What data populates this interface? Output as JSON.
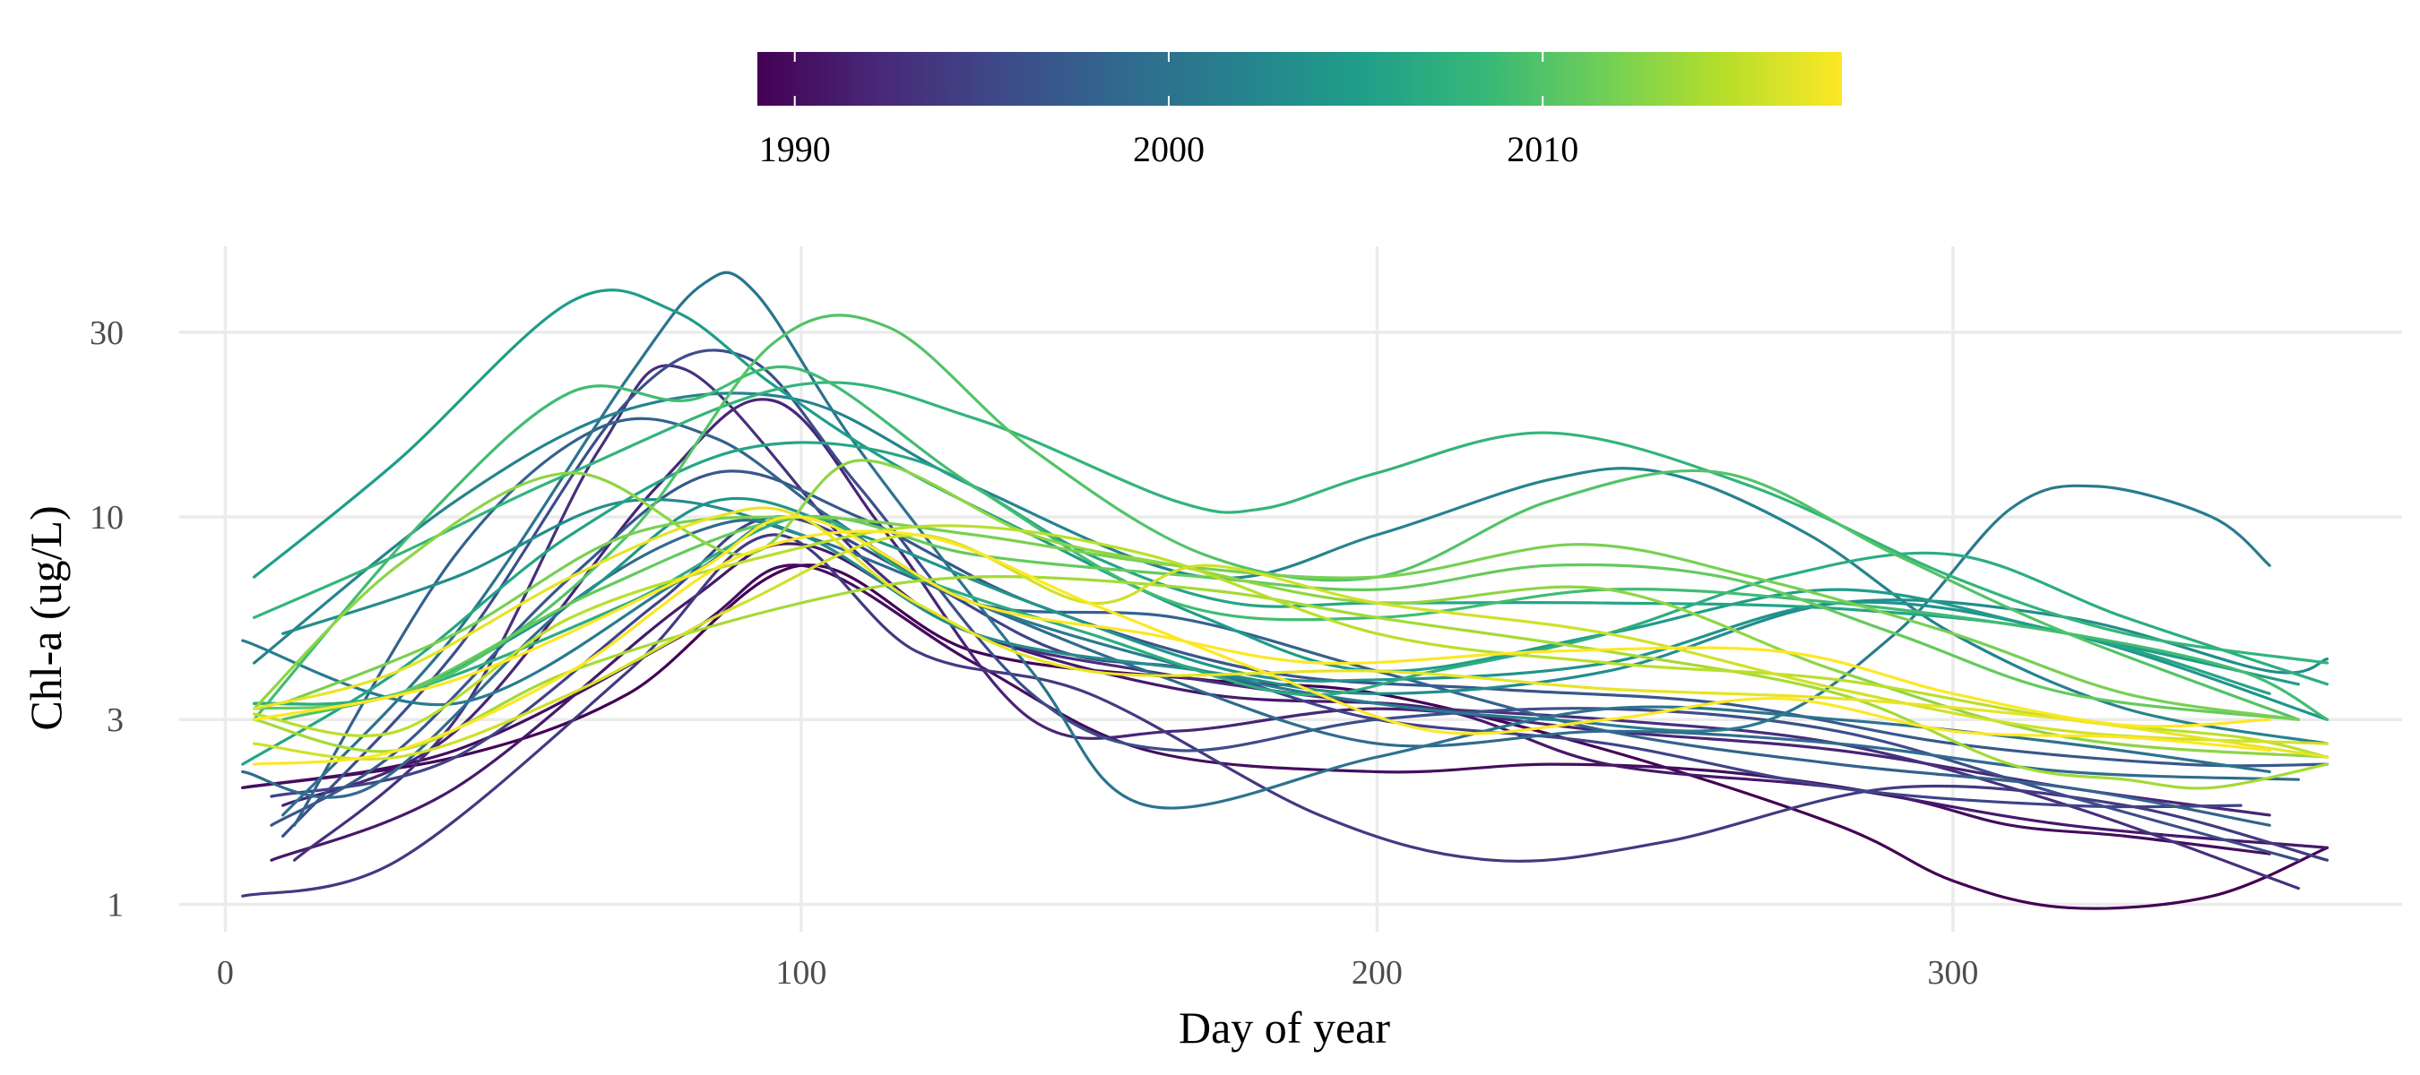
{
  "chart_data": {
    "type": "line",
    "xlabel": "Day of year",
    "ylabel": "Chl-a (ug/L)",
    "y_scale": "log",
    "xlim": [
      -8,
      378
    ],
    "ylim": [
      0.85,
      50
    ],
    "x_ticks": [
      0,
      100,
      200,
      300
    ],
    "x_tick_labels": [
      "0",
      "100",
      "200",
      "300"
    ],
    "y_ticks": [
      1,
      3,
      10,
      30
    ],
    "y_tick_labels": [
      "1",
      "3",
      "10",
      "30"
    ],
    "grid": true,
    "legend": {
      "type": "colorbar",
      "placement": "top",
      "range": [
        1989,
        2018
      ],
      "breaks": [
        1990,
        2000,
        2010
      ],
      "break_labels": [
        "1990",
        "2000",
        "2010"
      ],
      "colors": [
        "#440154",
        "#482878",
        "#3e4989",
        "#31688e",
        "#26828e",
        "#1f9e89",
        "#35b779",
        "#6ece58",
        "#b5de2b",
        "#fde725"
      ]
    },
    "series": [
      {
        "year": 1989,
        "x": [
          3,
          40,
          70,
          100,
          130,
          170,
          200,
          240,
          280,
          300,
          320,
          345,
          365
        ],
        "y": [
          2.0,
          2.4,
          3.5,
          7.5,
          4.5,
          3.8,
          3.5,
          2.5,
          1.6,
          1.15,
          0.98,
          1.05,
          1.4
        ]
      },
      {
        "year": 1990,
        "x": [
          3,
          40,
          80,
          100,
          130,
          160,
          200,
          230,
          260,
          290,
          310,
          330,
          355
        ],
        "y": [
          2.0,
          2.5,
          5.0,
          7.5,
          4.2,
          2.5,
          2.2,
          2.3,
          2.2,
          1.9,
          1.6,
          1.5,
          1.35
        ]
      },
      {
        "year": 1991,
        "x": [
          8,
          40,
          80,
          100,
          130,
          170,
          210,
          240,
          280,
          320,
          365
        ],
        "y": [
          1.3,
          2.0,
          6.0,
          8.5,
          5.0,
          3.5,
          3.2,
          2.3,
          2.0,
          1.6,
          1.4
        ]
      },
      {
        "year": 1992,
        "x": [
          10,
          40,
          75,
          95,
          115,
          140,
          165,
          200,
          240,
          280,
          320,
          355
        ],
        "y": [
          1.8,
          2.8,
          12.0,
          20.0,
          9.0,
          3.0,
          2.8,
          3.2,
          2.8,
          2.5,
          2.0,
          1.7
        ]
      },
      {
        "year": 1993,
        "x": [
          12,
          40,
          65,
          80,
          110,
          130,
          160,
          200,
          240,
          280,
          320,
          360
        ],
        "y": [
          1.3,
          3.0,
          15.0,
          24.0,
          8.0,
          5.0,
          4.0,
          3.3,
          3.0,
          2.6,
          1.8,
          1.1
        ]
      },
      {
        "year": 1994,
        "x": [
          3,
          30,
          70,
          95,
          120,
          150,
          190,
          220,
          250,
          290,
          330,
          365
        ],
        "y": [
          1.05,
          1.3,
          4.0,
          9.0,
          4.5,
          3.5,
          1.7,
          1.3,
          1.45,
          2.0,
          1.8,
          1.3
        ]
      },
      {
        "year": 1995,
        "x": [
          8,
          40,
          75,
          95,
          120,
          145,
          170,
          200,
          240,
          280,
          320,
          350
        ],
        "y": [
          1.9,
          2.4,
          6.0,
          10.0,
          7.0,
          4.5,
          4.0,
          3.0,
          2.6,
          2.0,
          1.8,
          1.8
        ]
      },
      {
        "year": 1996,
        "x": [
          10,
          40,
          70,
          90,
          110,
          140,
          165,
          200,
          240,
          280,
          320,
          360
        ],
        "y": [
          1.5,
          4.5,
          20.0,
          26.0,
          12.0,
          3.5,
          2.5,
          3.0,
          3.2,
          2.8,
          1.9,
          1.3
        ]
      },
      {
        "year": 1997,
        "x": [
          8,
          30,
          60,
          85,
          110,
          140,
          180,
          220,
          260,
          300,
          340,
          365
        ],
        "y": [
          1.6,
          2.5,
          7.0,
          13.0,
          10.0,
          6.0,
          4.0,
          3.6,
          3.3,
          2.6,
          2.3,
          2.3
        ]
      },
      {
        "year": 1998,
        "x": [
          12,
          40,
          65,
          85,
          105,
          130,
          165,
          200,
          240,
          280,
          320,
          355
        ],
        "y": [
          1.6,
          8.0,
          17.0,
          16.0,
          10.0,
          6.0,
          5.5,
          4.0,
          2.8,
          2.3,
          2.0,
          1.6
        ]
      },
      {
        "year": 1999,
        "x": [
          3,
          25,
          60,
          85,
          100,
          130,
          160,
          200,
          240,
          280,
          320,
          360
        ],
        "y": [
          2.2,
          2.0,
          6.0,
          9.5,
          9.0,
          6.0,
          4.0,
          2.6,
          2.8,
          2.6,
          2.2,
          2.1
        ]
      },
      {
        "year": 2000,
        "x": [
          10,
          40,
          70,
          83,
          92,
          110,
          140,
          160,
          200,
          240,
          280,
          320,
          355
        ],
        "y": [
          1.7,
          5.0,
          23.0,
          40.0,
          38.0,
          15.0,
          4.0,
          1.8,
          2.4,
          3.2,
          3.0,
          2.6,
          2.2
        ]
      },
      {
        "year": 2001,
        "x": [
          3,
          40,
          80,
          100,
          130,
          170,
          200,
          230,
          265,
          290,
          310,
          325,
          345,
          355
        ],
        "y": [
          4.8,
          3.3,
          7.0,
          10.0,
          6.0,
          4.0,
          3.3,
          3.0,
          2.9,
          5.0,
          10.5,
          12.0,
          10.0,
          7.5
        ]
      },
      {
        "year": 2002,
        "x": [
          5,
          40,
          70,
          100,
          130,
          170,
          200,
          230,
          250,
          275,
          300,
          330,
          365
        ],
        "y": [
          4.2,
          11.0,
          19.0,
          20.0,
          12.0,
          7.0,
          9.0,
          12.5,
          13.0,
          9.0,
          5.0,
          3.2,
          2.6
        ]
      },
      {
        "year": 2003,
        "x": [
          10,
          40,
          70,
          100,
          130,
          170,
          200,
          240,
          280,
          320,
          355,
          365
        ],
        "y": [
          5.0,
          7.0,
          11.0,
          9.0,
          5.0,
          4.0,
          3.5,
          4.0,
          6.0,
          5.5,
          4.0,
          4.3
        ]
      },
      {
        "year": 2004,
        "x": [
          5,
          30,
          60,
          85,
          110,
          140,
          175,
          200,
          240,
          280,
          320,
          365
        ],
        "y": [
          3.3,
          3.5,
          6.0,
          11.0,
          9.0,
          6.0,
          4.0,
          3.8,
          4.2,
          6.0,
          5.0,
          3.0
        ]
      },
      {
        "year": 2005,
        "x": [
          5,
          30,
          60,
          78,
          95,
          115,
          140,
          170,
          200,
          240,
          280,
          320,
          360
        ],
        "y": [
          7.0,
          14.0,
          36.0,
          34.0,
          22.0,
          14.0,
          9.0,
          5.5,
          4.0,
          5.0,
          6.5,
          5.0,
          3.7
        ]
      },
      {
        "year": 2006,
        "x": [
          3,
          30,
          60,
          90,
          120,
          150,
          175,
          200,
          240,
          280,
          320,
          355
        ],
        "y": [
          2.3,
          4.0,
          9.0,
          15.0,
          14.0,
          8.0,
          6.0,
          6.0,
          6.0,
          5.8,
          5.0,
          3.5
        ]
      },
      {
        "year": 2007,
        "x": [
          5,
          30,
          70,
          100,
          120,
          150,
          185,
          210,
          240,
          270,
          300,
          330,
          365
        ],
        "y": [
          3.3,
          3.5,
          6.0,
          10.0,
          7.0,
          5.0,
          3.5,
          4.0,
          5.0,
          7.0,
          8.0,
          5.5,
          3.7
        ]
      },
      {
        "year": 2008,
        "x": [
          5,
          30,
          60,
          100,
          130,
          165,
          180,
          200,
          230,
          265,
          300,
          330,
          365
        ],
        "y": [
          5.5,
          8.0,
          13.0,
          22.0,
          18.0,
          11.0,
          10.5,
          13.0,
          16.5,
          12.0,
          7.0,
          5.0,
          4.2
        ]
      },
      {
        "year": 2009,
        "x": [
          5,
          35,
          60,
          80,
          100,
          130,
          165,
          200,
          240,
          280,
          320,
          350,
          365
        ],
        "y": [
          3.0,
          10.0,
          21.0,
          20.0,
          24.0,
          12.0,
          6.0,
          5.5,
          6.5,
          6.0,
          5.0,
          4.0,
          3.0
        ]
      },
      {
        "year": 2010,
        "x": [
          10,
          40,
          70,
          95,
          115,
          140,
          170,
          200,
          230,
          260,
          290,
          320,
          360
        ],
        "y": [
          3.0,
          4.0,
          9.0,
          28.0,
          31.0,
          15.0,
          8.0,
          7.0,
          11.0,
          13.0,
          8.0,
          5.0,
          3.0
        ]
      },
      {
        "year": 2011,
        "x": [
          5,
          30,
          65,
          100,
          130,
          170,
          200,
          230,
          260,
          290,
          320,
          360
        ],
        "y": [
          3.2,
          3.5,
          6.5,
          10.0,
          8.0,
          7.0,
          6.5,
          7.5,
          7.0,
          5.0,
          3.5,
          3.0
        ]
      },
      {
        "year": 2012,
        "x": [
          10,
          40,
          70,
          100,
          130,
          165,
          200,
          235,
          265,
          300,
          330,
          360
        ],
        "y": [
          3.3,
          5.0,
          9.0,
          10.0,
          9.0,
          7.5,
          7.0,
          8.5,
          7.0,
          5.0,
          3.5,
          3.0
        ]
      },
      {
        "year": 2013,
        "x": [
          5,
          30,
          60,
          90,
          110,
          140,
          165,
          200,
          240,
          280,
          320,
          365
        ],
        "y": [
          3.2,
          7.5,
          13.0,
          8.0,
          14.0,
          9.0,
          7.5,
          6.0,
          6.5,
          4.0,
          2.7,
          2.4
        ]
      },
      {
        "year": 2014,
        "x": [
          5,
          30,
          60,
          100,
          130,
          170,
          200,
          240,
          280,
          310,
          330,
          345,
          365
        ],
        "y": [
          3.0,
          2.5,
          4.0,
          6.0,
          7.0,
          6.5,
          5.5,
          4.5,
          3.5,
          2.3,
          2.1,
          2.0,
          2.3
        ]
      },
      {
        "year": 2015,
        "x": [
          5,
          30,
          60,
          95,
          125,
          160,
          200,
          240,
          280,
          320,
          350,
          365
        ],
        "y": [
          3.1,
          2.8,
          5.5,
          8.0,
          9.5,
          8.0,
          5.0,
          4.2,
          3.8,
          3.0,
          2.7,
          2.4
        ]
      },
      {
        "year": 2016,
        "x": [
          5,
          30,
          60,
          90,
          120,
          150,
          170,
          200,
          240,
          280,
          320,
          365
        ],
        "y": [
          2.6,
          2.4,
          3.5,
          6.0,
          9.0,
          6.0,
          7.5,
          6.0,
          5.0,
          3.6,
          2.8,
          2.6
        ]
      },
      {
        "year": 2017,
        "x": [
          5,
          30,
          60,
          85,
          100,
          120,
          150,
          200,
          240,
          280,
          320,
          365
        ],
        "y": [
          3.2,
          4.0,
          7.0,
          10.0,
          10.0,
          6.0,
          4.0,
          4.0,
          3.6,
          3.4,
          3.0,
          2.4
        ]
      },
      {
        "year": 2018,
        "x": [
          5,
          30,
          60,
          90,
          120,
          150,
          180,
          210,
          240,
          270,
          300,
          330,
          355
        ],
        "y": [
          2.3,
          2.5,
          4.0,
          8.0,
          9.0,
          6.0,
          4.0,
          2.8,
          3.0,
          3.4,
          2.8,
          2.7,
          2.5
        ]
      },
      {
        "year": 2018,
        "x": [
          5,
          40,
          80,
          100,
          130,
          160,
          190,
          230,
          270,
          300,
          330,
          355
        ],
        "y": [
          3.0,
          3.8,
          7.0,
          10.0,
          6.0,
          5.0,
          4.2,
          4.5,
          4.5,
          3.5,
          2.9,
          3.0
        ]
      }
    ]
  }
}
